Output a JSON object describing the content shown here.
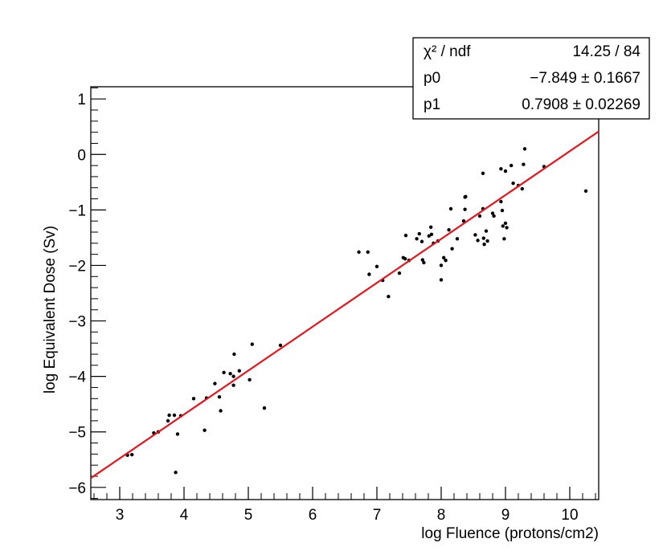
{
  "chart_data": {
    "type": "scatter",
    "xlabel": "log Fluence (protons/cm2)",
    "ylabel": "log Equivalent Dose (Sv)",
    "xlim": [
      2.55,
      10.45
    ],
    "ylim": [
      -6.22,
      1.22
    ],
    "x_ticks": [
      3,
      4,
      5,
      6,
      7,
      8,
      9,
      10
    ],
    "x_tick_labels": [
      "3",
      "4",
      "5",
      "6",
      "7",
      "8",
      "9",
      "10"
    ],
    "y_ticks": [
      1,
      0,
      -1,
      -2,
      -3,
      -4,
      -5,
      -6
    ],
    "y_tick_labels": [
      "1",
      "0",
      "−1",
      "−2",
      "−3",
      "−4",
      "−5",
      "−6"
    ],
    "grid": false,
    "point_color": "#000000",
    "fit_color": "#e8141c",
    "fit": {
      "intercept": -7.849,
      "slope": 0.7908
    },
    "stats": [
      {
        "label": "χ² / ndf",
        "value": "14.25 / 84"
      },
      {
        "label": "p0",
        "value": "−7.849 ± 0.1667"
      },
      {
        "label": "p1",
        "value": "0.7908 ± 0.02269"
      }
    ],
    "points": [
      [
        3.12,
        -5.42
      ],
      [
        3.19,
        -5.41
      ],
      [
        3.53,
        -5.02
      ],
      [
        3.6,
        -5.0
      ],
      [
        3.75,
        -4.8
      ],
      [
        3.77,
        -4.7
      ],
      [
        3.85,
        -4.7
      ],
      [
        3.95,
        -4.71
      ],
      [
        3.9,
        -5.04
      ],
      [
        3.87,
        -5.73
      ],
      [
        4.15,
        -4.4
      ],
      [
        4.32,
        -4.97
      ],
      [
        4.35,
        -4.39
      ],
      [
        4.48,
        -4.13
      ],
      [
        4.55,
        -4.37
      ],
      [
        4.57,
        -4.62
      ],
      [
        4.62,
        -3.93
      ],
      [
        4.72,
        -3.95
      ],
      [
        4.77,
        -4.0
      ],
      [
        4.78,
        -3.6
      ],
      [
        4.77,
        -4.16
      ],
      [
        4.86,
        -3.9
      ],
      [
        5.02,
        -4.06
      ],
      [
        5.06,
        -3.42
      ],
      [
        5.25,
        -4.57
      ],
      [
        5.5,
        -3.44
      ],
      [
        6.72,
        -1.76
      ],
      [
        6.86,
        -1.76
      ],
      [
        6.88,
        -2.16
      ],
      [
        7.0,
        -2.02
      ],
      [
        7.09,
        -2.27
      ],
      [
        7.18,
        -2.56
      ],
      [
        7.35,
        -2.14
      ],
      [
        7.41,
        -1.86
      ],
      [
        7.44,
        -1.88
      ],
      [
        7.45,
        -1.46
      ],
      [
        7.5,
        -1.91
      ],
      [
        7.62,
        -1.52
      ],
      [
        7.66,
        -1.43
      ],
      [
        7.7,
        -1.57
      ],
      [
        7.71,
        -1.9
      ],
      [
        7.73,
        -1.95
      ],
      [
        7.81,
        -1.47
      ],
      [
        7.84,
        -1.31
      ],
      [
        7.85,
        -1.44
      ],
      [
        7.88,
        -1.6
      ],
      [
        7.95,
        -1.56
      ],
      [
        8.0,
        -2.0
      ],
      [
        8.0,
        -2.26
      ],
      [
        8.04,
        -1.86
      ],
      [
        8.07,
        -1.91
      ],
      [
        8.12,
        -1.36
      ],
      [
        8.15,
        -0.98
      ],
      [
        8.17,
        -1.7
      ],
      [
        8.25,
        -1.52
      ],
      [
        8.35,
        -1.2
      ],
      [
        8.37,
        -0.99
      ],
      [
        8.38,
        -0.76
      ],
      [
        8.37,
        -0.77
      ],
      [
        8.53,
        -1.45
      ],
      [
        8.57,
        -1.55
      ],
      [
        8.6,
        -1.11
      ],
      [
        8.65,
        -0.98
      ],
      [
        8.65,
        -0.34
      ],
      [
        8.66,
        -1.51
      ],
      [
        8.67,
        -1.62
      ],
      [
        8.7,
        -1.38
      ],
      [
        8.72,
        -1.56
      ],
      [
        8.8,
        -1.06
      ],
      [
        8.82,
        -1.11
      ],
      [
        8.93,
        -0.26
      ],
      [
        8.95,
        -1.01
      ],
      [
        8.93,
        -0.85
      ],
      [
        8.96,
        -1.29
      ],
      [
        8.98,
        -1.52
      ],
      [
        9.0,
        -1.24
      ],
      [
        9.0,
        -0.3
      ],
      [
        9.02,
        -1.32
      ],
      [
        9.09,
        -0.2
      ],
      [
        9.12,
        -0.52
      ],
      [
        9.2,
        -0.56
      ],
      [
        9.26,
        -0.62
      ],
      [
        9.28,
        -0.18
      ],
      [
        9.3,
        0.1
      ],
      [
        9.6,
        -0.22
      ],
      [
        10.25,
        -0.66
      ]
    ]
  }
}
